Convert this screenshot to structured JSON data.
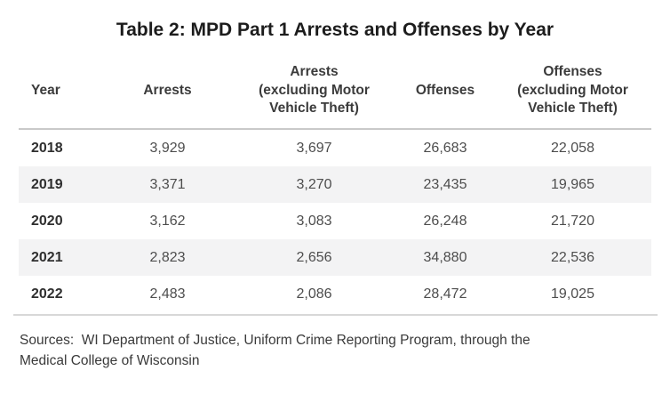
{
  "title": "Table 2: MPD Part 1 Arrests and Offenses by Year",
  "table": {
    "columns": [
      "Year",
      "Arrests",
      "Arrests\n(excluding Motor\nVehicle Theft)",
      "Offenses",
      "Offenses\n(excluding Motor\nVehicle Theft)"
    ],
    "rows": [
      {
        "year": "2018",
        "arrests": "3,929",
        "arrests_excl_mvt": "3,697",
        "offenses": "26,683",
        "offenses_excl_mvt": "22,058"
      },
      {
        "year": "2019",
        "arrests": "3,371",
        "arrests_excl_mvt": "3,270",
        "offenses": "23,435",
        "offenses_excl_mvt": "19,965"
      },
      {
        "year": "2020",
        "arrests": "3,162",
        "arrests_excl_mvt": "3,083",
        "offenses": "26,248",
        "offenses_excl_mvt": "21,720"
      },
      {
        "year": "2021",
        "arrests": "2,823",
        "arrests_excl_mvt": "2,656",
        "offenses": "34,880",
        "offenses_excl_mvt": "22,536"
      },
      {
        "year": "2022",
        "arrests": "2,483",
        "arrests_excl_mvt": "2,086",
        "offenses": "28,472",
        "offenses_excl_mvt": "19,025"
      }
    ],
    "colors": {
      "stripe": "#f3f3f4",
      "header_rule": "#c9c9c9",
      "footer_rule": "#d8d8d8",
      "title_text": "#1c1c1c",
      "body_text": "#4d4d4d"
    }
  },
  "footer": {
    "sources": "Sources:  WI Department of Justice, Uniform Crime Reporting Program, through the\nMedical College of Wisconsin"
  }
}
